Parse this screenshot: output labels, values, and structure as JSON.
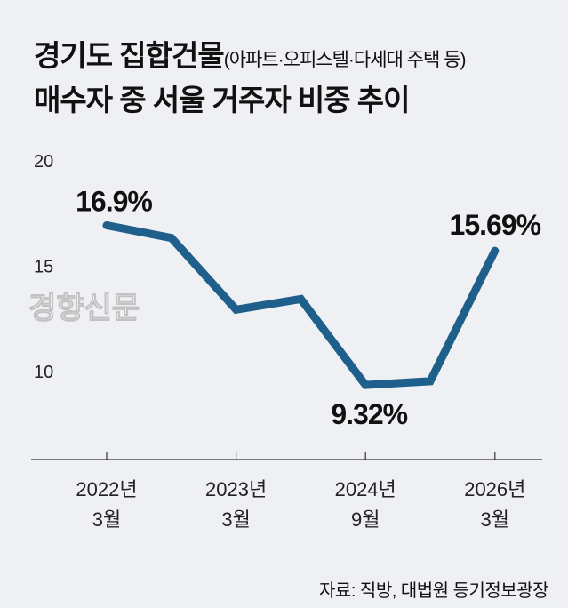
{
  "title": {
    "line1_main": "경기도 집합건물",
    "line1_sub": "(아파트·오피스텔·다세대 주택 등)",
    "line2": "매수자 중 서울 거주자 비중 추이"
  },
  "watermark": "경향신문",
  "source": "자료: 직방, 대법원 등기정보광장",
  "colors": {
    "line": "#1f5f8c",
    "background": "#eef0f3"
  },
  "chart_data": {
    "type": "line",
    "title": "경기도 집합건물(아파트·오피스텔·다세대 주택 등) 매수자 중 서울 거주자 비중 추이",
    "xlabel": "",
    "ylabel": "",
    "ylim": [
      5.5,
      20
    ],
    "yticks": [
      "20",
      "15",
      "10"
    ],
    "ytick_values": [
      20,
      15,
      10
    ],
    "x": [
      0,
      1,
      2,
      3,
      4,
      5,
      6
    ],
    "values": [
      16.9,
      16.3,
      12.9,
      13.4,
      9.32,
      9.5,
      15.69
    ],
    "xtick_positions": [
      0,
      2,
      4,
      6
    ],
    "xtick_labels": [
      [
        "2022년",
        "3월"
      ],
      [
        "2023년",
        "3월"
      ],
      [
        "2024년",
        "9월"
      ],
      [
        "2026년",
        "3월"
      ]
    ],
    "data_labels": [
      {
        "index": 0,
        "text": "16.9%"
      },
      {
        "index": 4,
        "text": "9.32%"
      },
      {
        "index": 6,
        "text": "15.69%"
      }
    ],
    "grid": false
  }
}
